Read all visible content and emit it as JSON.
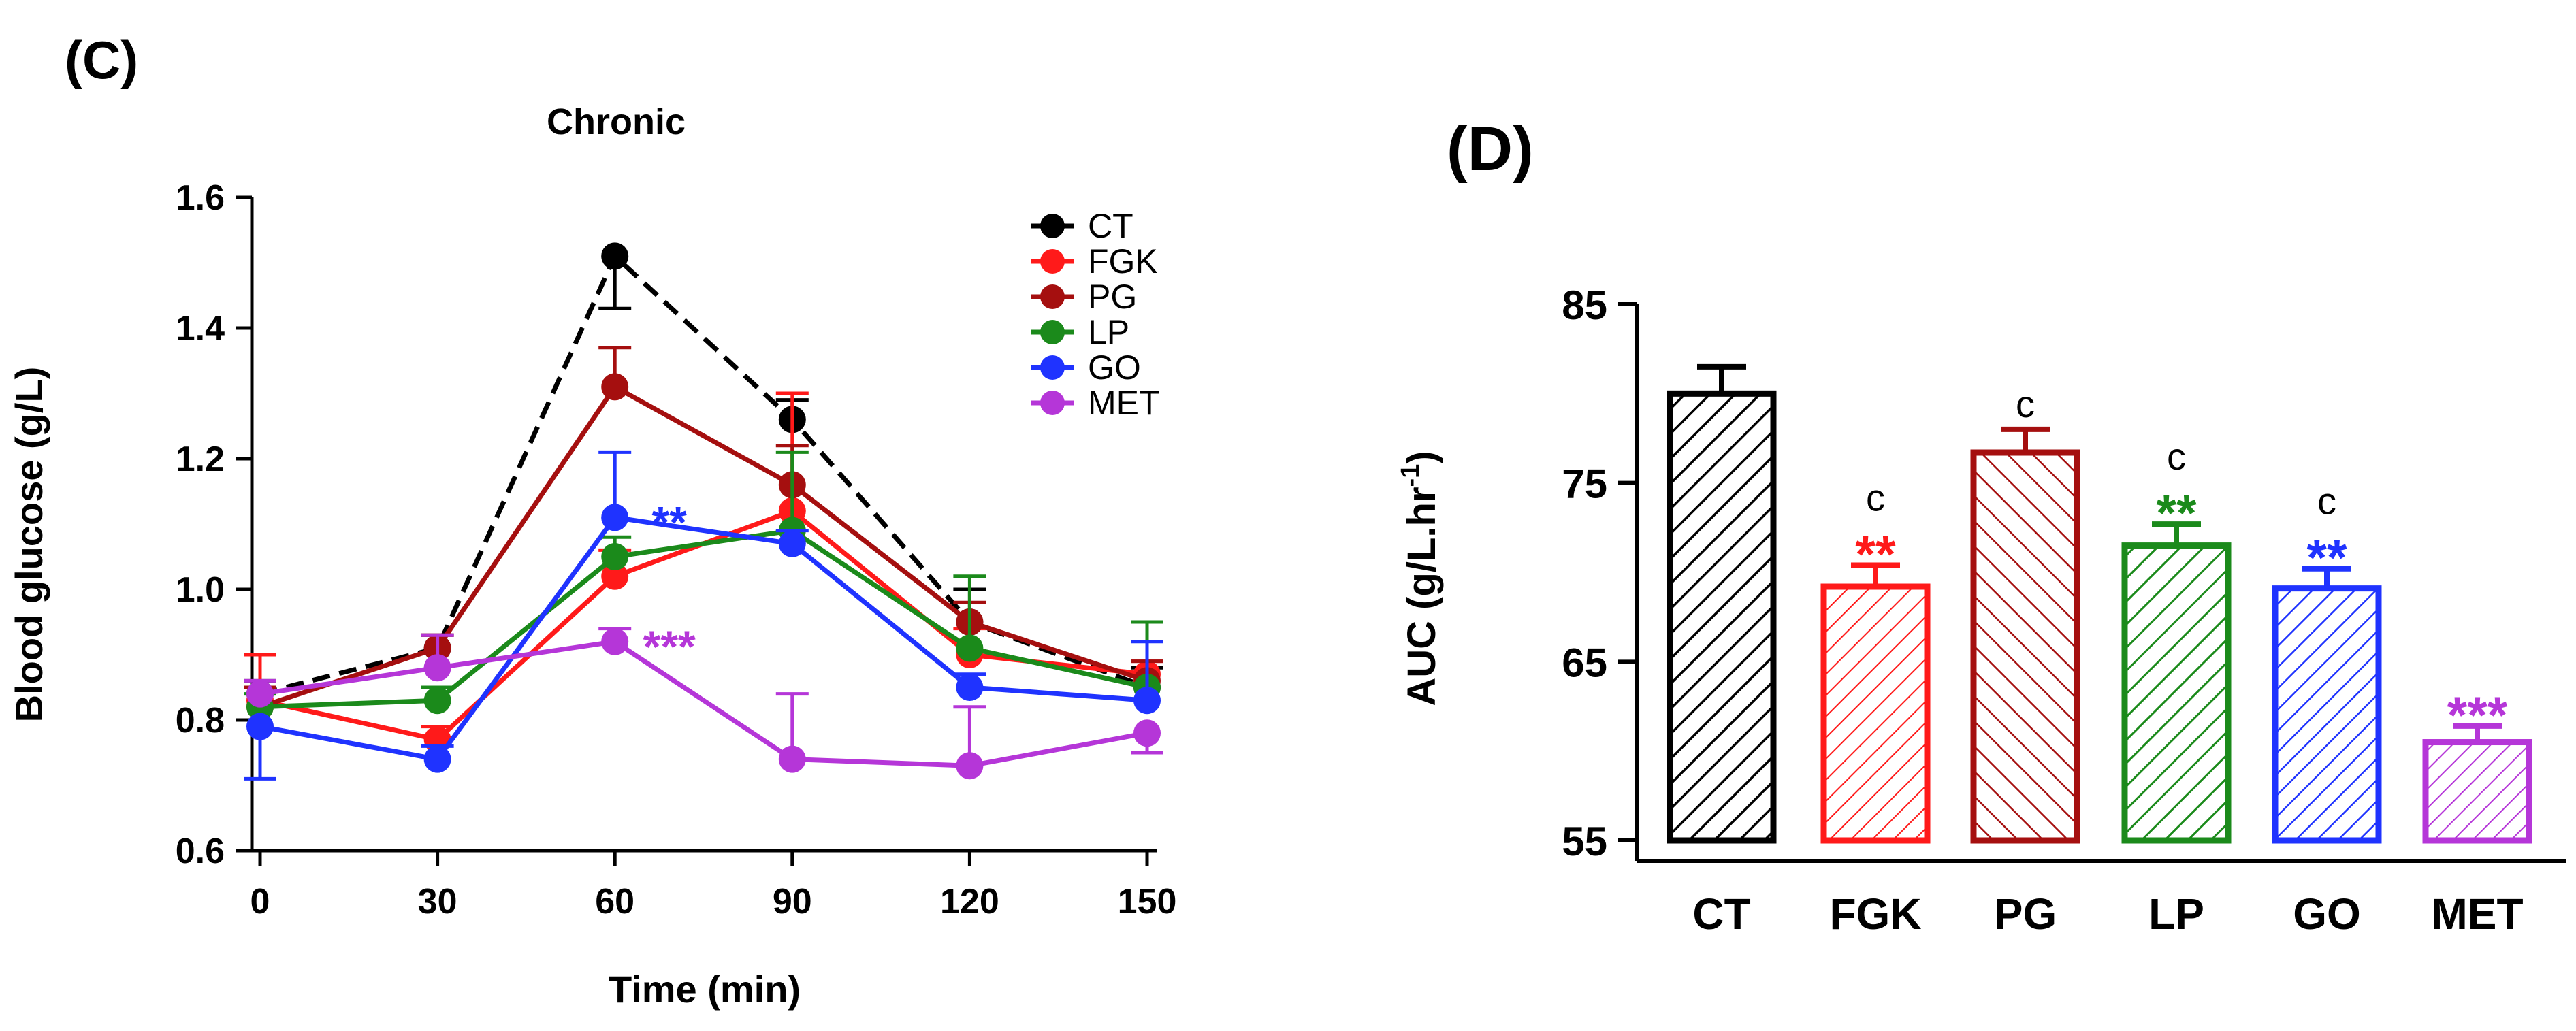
{
  "panel_c": {
    "label": "(C)",
    "chart_data": {
      "type": "line",
      "title": "Chronic",
      "xlabel": "Time (min)",
      "ylabel": "Blood glucose (g/L)",
      "x": [
        0,
        30,
        60,
        90,
        120,
        150
      ],
      "xticks": [
        "0",
        "30",
        "60",
        "90",
        "120",
        "150"
      ],
      "ylim": [
        0.6,
        1.6
      ],
      "yticks": [
        "0.6",
        "0.8",
        "1.0",
        "1.2",
        "1.4",
        "1.6"
      ],
      "legend": "top-right",
      "series": [
        {
          "name": "CT",
          "color": "#000000",
          "dashed": true,
          "values": [
            0.84,
            0.91,
            1.51,
            1.26,
            0.95,
            0.85
          ],
          "err": [
            0.02,
            0.02,
            0.08,
            0.03,
            0.05,
            0.03
          ],
          "err_dir": [
            1,
            1,
            -1,
            1,
            1,
            1
          ]
        },
        {
          "name": "FGK",
          "color": "#ff1a1a",
          "dashed": false,
          "values": [
            0.83,
            0.77,
            1.02,
            1.12,
            0.9,
            0.87
          ],
          "err": [
            0.07,
            0.02,
            0.04,
            0.18,
            0.04,
            0.02
          ],
          "err_dir": [
            1,
            1,
            1,
            1,
            1,
            1
          ]
        },
        {
          "name": "PG",
          "color": "#a50f0f",
          "dashed": false,
          "values": [
            0.82,
            0.91,
            1.31,
            1.16,
            0.95,
            0.86
          ],
          "err": [
            0.03,
            0.02,
            0.06,
            0.06,
            0.03,
            0.03
          ],
          "err_dir": [
            1,
            1,
            1,
            1,
            1,
            1
          ]
        },
        {
          "name": "LP",
          "color": "#1b8a1b",
          "dashed": false,
          "values": [
            0.82,
            0.83,
            1.05,
            1.09,
            0.91,
            0.85
          ],
          "err": [
            0.02,
            0.02,
            0.03,
            0.12,
            0.11,
            0.1
          ],
          "err_dir": [
            1,
            1,
            1,
            1,
            1,
            1
          ]
        },
        {
          "name": "GO",
          "color": "#1f33ff",
          "dashed": false,
          "values": [
            0.79,
            0.74,
            1.11,
            1.07,
            0.85,
            0.83
          ],
          "err": [
            0.08,
            0.02,
            0.1,
            0.02,
            0.02,
            0.09
          ],
          "err_dir": [
            -1,
            1,
            1,
            1,
            1,
            1
          ]
        },
        {
          "name": "MET",
          "color": "#b536d8",
          "dashed": false,
          "values": [
            0.84,
            0.88,
            0.92,
            0.74,
            0.73,
            0.78
          ],
          "err": [
            0.02,
            0.05,
            0.02,
            0.1,
            0.09,
            0.03
          ],
          "err_dir": [
            1,
            1,
            1,
            1,
            1,
            -1
          ]
        }
      ],
      "annotations": [
        {
          "text": "**",
          "x": 60,
          "y": 1.11,
          "color": "#1f33ff"
        },
        {
          "text": "***",
          "x": 60,
          "y": 0.92,
          "color": "#b536d8"
        }
      ]
    }
  },
  "panel_d": {
    "label": "(D)",
    "chart_data": {
      "type": "bar",
      "title": "",
      "xlabel": "",
      "ylabel": "AUC (g/L.hr",
      "ylabel_sup": "-1",
      "ylabel_close": ")",
      "categories": [
        "CT",
        "FGK",
        "PG",
        "LP",
        "GO",
        "MET"
      ],
      "values": [
        80.0,
        69.2,
        76.7,
        71.5,
        69.1,
        60.5
      ],
      "errors": [
        1.5,
        1.2,
        1.3,
        1.2,
        1.1,
        0.9
      ],
      "colors": [
        "#000000",
        "#ff1a1a",
        "#a50f0f",
        "#1b8a1b",
        "#1f33ff",
        "#b536d8"
      ],
      "ylim": [
        55,
        85
      ],
      "yticks": [
        "55",
        "65",
        "75",
        "85"
      ],
      "stars": [
        "",
        "**",
        "",
        "**",
        "**",
        "***"
      ],
      "letters": [
        "",
        "c",
        "c",
        "c",
        "c",
        ""
      ]
    }
  }
}
